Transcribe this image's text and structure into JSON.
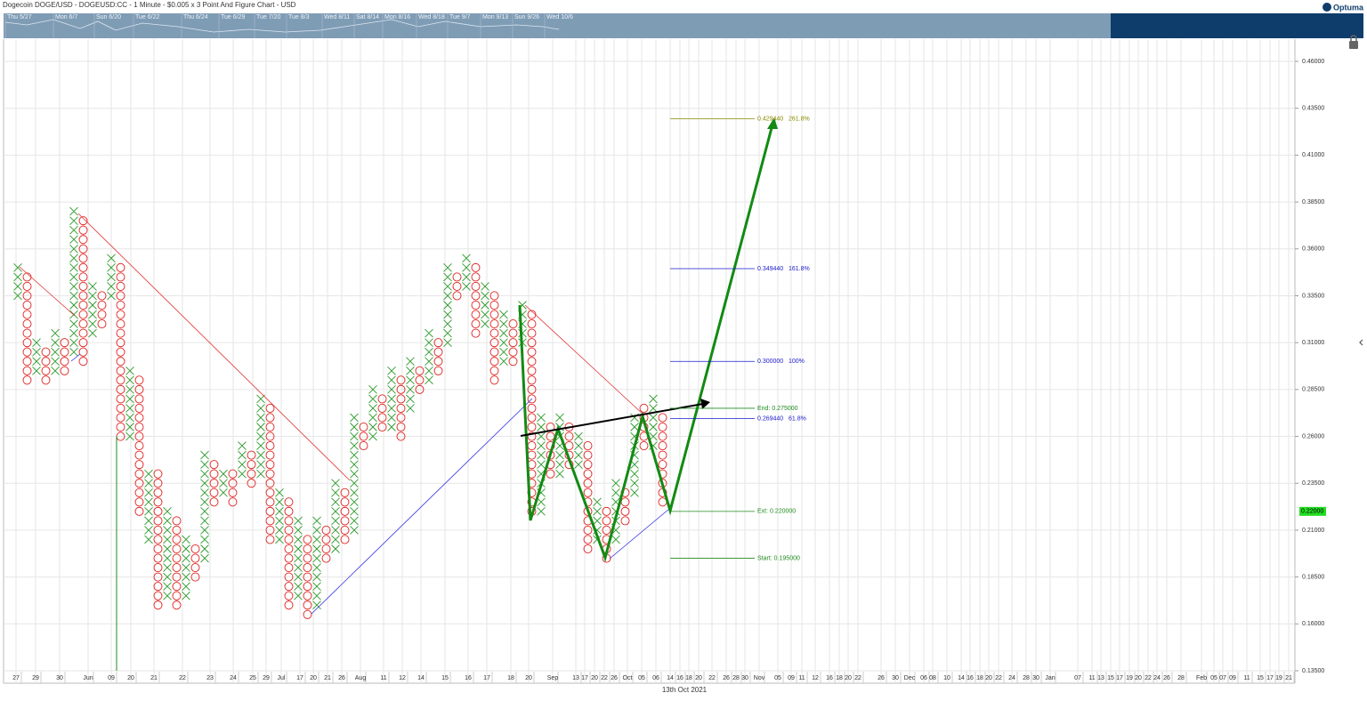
{
  "chart_data": {
    "type": "point-and-figure",
    "title": "Dogecoin DOGE/USD - DOGEUSD:CC - 1 Minute - $0.005 x 3 Point And Figure Chart - USD",
    "brand": "Optuma",
    "navigator_labels": [
      "Thu 5/27",
      "Mon 6/7",
      "Sun 6/20",
      "Tue 6/22",
      "Thu 6/24",
      "Tue 6/29",
      "Tue 7/20",
      "Tue 8/3",
      "Wed 8/11",
      "Sat 8/14",
      "Mon 8/16",
      "Wed 8/18",
      "Tue 9/7",
      "Mon 9/13",
      "Sun 9/26",
      "Wed 10/6"
    ],
    "box_size": 0.005,
    "ylim": [
      0.135,
      0.46
    ],
    "yticks": [
      {
        "value": 0.46,
        "label": "0.46000"
      },
      {
        "value": 0.435,
        "label": "0.43500"
      },
      {
        "value": 0.41,
        "label": "0.41000"
      },
      {
        "value": 0.385,
        "label": "0.38500"
      },
      {
        "value": 0.36,
        "label": "0.36000"
      },
      {
        "value": 0.335,
        "label": "0.33500"
      },
      {
        "value": 0.31,
        "label": "0.31000"
      },
      {
        "value": 0.285,
        "label": "0.28500"
      },
      {
        "value": 0.26,
        "label": "0.26000"
      },
      {
        "value": 0.235,
        "label": "0.23500"
      },
      {
        "value": 0.21,
        "label": "0.21000"
      },
      {
        "value": 0.185,
        "label": "0.18500"
      },
      {
        "value": 0.16,
        "label": "0.16000"
      },
      {
        "value": 0.135,
        "label": "0.13500"
      }
    ],
    "x_labels": [
      "27",
      "29",
      "30",
      "Jun",
      "09",
      "20",
      "21",
      "22",
      "23",
      "24",
      "25",
      "29",
      "Jul",
      "17",
      "20",
      "21",
      "26",
      "Aug",
      "11",
      "12",
      "14",
      "15",
      "16",
      "17",
      "18",
      "20",
      "Sep",
      "13",
      "17",
      "20",
      "22",
      "26",
      "Oct",
      "05",
      "06",
      "14",
      "16",
      "18",
      "20",
      "22",
      "26",
      "28",
      "30",
      "Nov",
      "05",
      "09",
      "11",
      "12",
      "16",
      "18",
      "20",
      "22",
      "26",
      "30",
      "Dec",
      "06",
      "08",
      "10",
      "14",
      "16",
      "18",
      "20",
      "22",
      "24",
      "28",
      "30",
      "Jan",
      "07",
      "11",
      "13",
      "15",
      "17",
      "19",
      "20",
      "22",
      "24",
      "26",
      "28",
      "Feb",
      "05",
      "07",
      "09",
      "11",
      "15",
      "17",
      "19",
      "21"
    ],
    "date_label": "13th Oct 2021",
    "last_price": {
      "value": 0.22,
      "label": "0.22000"
    },
    "grid": true,
    "columns": [
      {
        "type": "X",
        "low": 0.335,
        "high": 0.35
      },
      {
        "type": "O",
        "low": 0.29,
        "high": 0.345
      },
      {
        "type": "X",
        "low": 0.295,
        "high": 0.31
      },
      {
        "type": "O",
        "low": 0.29,
        "high": 0.305
      },
      {
        "type": "X",
        "low": 0.295,
        "high": 0.315
      },
      {
        "type": "O",
        "low": 0.295,
        "high": 0.31
      },
      {
        "type": "X",
        "low": 0.305,
        "high": 0.38
      },
      {
        "type": "O",
        "low": 0.3,
        "high": 0.375
      },
      {
        "type": "X",
        "low": 0.315,
        "high": 0.34
      },
      {
        "type": "O",
        "low": 0.32,
        "high": 0.335
      },
      {
        "type": "X",
        "low": 0.335,
        "high": 0.355
      },
      {
        "type": "O",
        "low": 0.26,
        "high": 0.35
      },
      {
        "type": "X",
        "low": 0.26,
        "high": 0.295
      },
      {
        "type": "O",
        "low": 0.22,
        "high": 0.29
      },
      {
        "type": "X",
        "low": 0.205,
        "high": 0.24
      },
      {
        "type": "O",
        "low": 0.17,
        "high": 0.24
      },
      {
        "type": "X",
        "low": 0.175,
        "high": 0.22
      },
      {
        "type": "O",
        "low": 0.17,
        "high": 0.215
      },
      {
        "type": "X",
        "low": 0.175,
        "high": 0.205
      },
      {
        "type": "O",
        "low": 0.185,
        "high": 0.2
      },
      {
        "type": "X",
        "low": 0.195,
        "high": 0.25
      },
      {
        "type": "O",
        "low": 0.225,
        "high": 0.245
      },
      {
        "type": "X",
        "low": 0.23,
        "high": 0.24
      },
      {
        "type": "O",
        "low": 0.225,
        "high": 0.24
      },
      {
        "type": "X",
        "low": 0.24,
        "high": 0.255
      },
      {
        "type": "O",
        "low": 0.235,
        "high": 0.25
      },
      {
        "type": "X",
        "low": 0.24,
        "high": 0.28
      },
      {
        "type": "O",
        "low": 0.205,
        "high": 0.275
      },
      {
        "type": "X",
        "low": 0.205,
        "high": 0.23
      },
      {
        "type": "O",
        "low": 0.17,
        "high": 0.225
      },
      {
        "type": "X",
        "low": 0.175,
        "high": 0.215
      },
      {
        "type": "O",
        "low": 0.165,
        "high": 0.205
      },
      {
        "type": "X",
        "low": 0.17,
        "high": 0.215
      },
      {
        "type": "O",
        "low": 0.195,
        "high": 0.21
      },
      {
        "type": "X",
        "low": 0.2,
        "high": 0.235
      },
      {
        "type": "O",
        "low": 0.205,
        "high": 0.23
      },
      {
        "type": "X",
        "low": 0.21,
        "high": 0.27
      },
      {
        "type": "O",
        "low": 0.255,
        "high": 0.265
      },
      {
        "type": "X",
        "low": 0.26,
        "high": 0.285
      },
      {
        "type": "O",
        "low": 0.265,
        "high": 0.28
      },
      {
        "type": "X",
        "low": 0.265,
        "high": 0.295
      },
      {
        "type": "O",
        "low": 0.26,
        "high": 0.29
      },
      {
        "type": "X",
        "low": 0.275,
        "high": 0.3
      },
      {
        "type": "O",
        "low": 0.285,
        "high": 0.295
      },
      {
        "type": "X",
        "low": 0.29,
        "high": 0.315
      },
      {
        "type": "O",
        "low": 0.295,
        "high": 0.31
      },
      {
        "type": "X",
        "low": 0.31,
        "high": 0.35
      },
      {
        "type": "O",
        "low": 0.335,
        "high": 0.345
      },
      {
        "type": "X",
        "low": 0.34,
        "high": 0.355
      },
      {
        "type": "O",
        "low": 0.315,
        "high": 0.35
      },
      {
        "type": "X",
        "low": 0.32,
        "high": 0.34
      },
      {
        "type": "O",
        "low": 0.29,
        "high": 0.335
      },
      {
        "type": "X",
        "low": 0.3,
        "high": 0.325
      },
      {
        "type": "O",
        "low": 0.3,
        "high": 0.32
      },
      {
        "type": "X",
        "low": 0.31,
        "high": 0.33
      },
      {
        "type": "O",
        "low": 0.22,
        "high": 0.325
      },
      {
        "type": "X",
        "low": 0.22,
        "high": 0.27
      },
      {
        "type": "O",
        "low": 0.24,
        "high": 0.265
      },
      {
        "type": "X",
        "low": 0.24,
        "high": 0.27
      },
      {
        "type": "O",
        "low": 0.245,
        "high": 0.265
      },
      {
        "type": "X",
        "low": 0.245,
        "high": 0.26
      },
      {
        "type": "O",
        "low": 0.2,
        "high": 0.255
      },
      {
        "type": "X",
        "low": 0.205,
        "high": 0.225
      },
      {
        "type": "O",
        "low": 0.195,
        "high": 0.22
      },
      {
        "type": "X",
        "low": 0.205,
        "high": 0.235
      },
      {
        "type": "O",
        "low": 0.215,
        "high": 0.23
      },
      {
        "type": "X",
        "low": 0.23,
        "high": 0.27
      },
      {
        "type": "O",
        "low": 0.255,
        "high": 0.275
      },
      {
        "type": "X",
        "low": 0.255,
        "high": 0.28
      },
      {
        "type": "O",
        "low": 0.225,
        "high": 0.27
      }
    ],
    "levels": [
      {
        "value": 0.42944,
        "label": "0.429440",
        "ratio": "261.8%",
        "color": "#8a8a00"
      },
      {
        "value": 0.34944,
        "label": "0.349440",
        "ratio": "161.8%",
        "color": "#1a1acc"
      },
      {
        "value": 0.3,
        "label": "0.300000",
        "ratio": "100%",
        "color": "#1a1acc"
      },
      {
        "value": 0.275,
        "label": "End: 0.275000",
        "color": "#1f8a1f"
      },
      {
        "value": 0.26944,
        "label": "0.269440",
        "ratio": "61.8%",
        "color": "#1a1acc"
      },
      {
        "value": 0.22,
        "label": "Ext: 0.220000",
        "color": "#1f8a1f"
      },
      {
        "value": 0.195,
        "label": "Start: 0.195000",
        "color": "#1f8a1f"
      }
    ]
  }
}
